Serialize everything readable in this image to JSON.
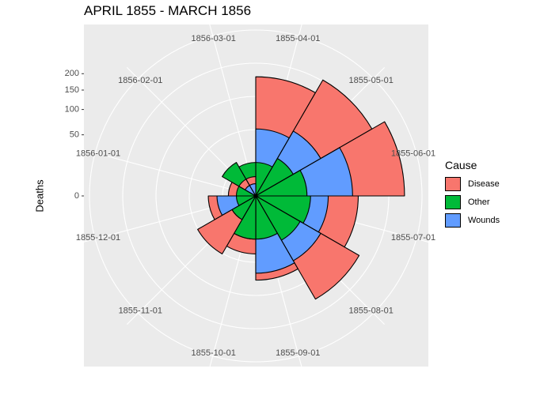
{
  "chart_data": {
    "type": "polar-area",
    "title": "APRIL 1855 - MARCH 1856",
    "xlabel": "",
    "ylabel": "Deaths",
    "y_scale": "sqrt",
    "y_ticks": [
      0,
      50,
      100,
      150,
      200
    ],
    "categories": [
      "1855-04-01",
      "1855-05-01",
      "1855-06-01",
      "1855-07-01",
      "1855-08-01",
      "1855-09-01",
      "1855-10-01",
      "1855-11-01",
      "1855-12-01",
      "1856-01-01",
      "1856-02-01",
      "1856-03-01"
    ],
    "legend_title": "Cause",
    "legend_position": "right",
    "series": [
      {
        "name": "Disease",
        "color": "#F8766D",
        "values": [
          190,
          240,
          295,
          140,
          190,
          95,
          45,
          60,
          30,
          10,
          5,
          5
        ]
      },
      {
        "name": "Wounds",
        "color": "#619CFF",
        "values": [
          60,
          75,
          125,
          70,
          75,
          80,
          25,
          10,
          20,
          0,
          2,
          2
        ]
      },
      {
        "name": "Other",
        "color": "#00BA38",
        "values": [
          15,
          25,
          35,
          40,
          35,
          25,
          25,
          10,
          5,
          5,
          20,
          15
        ]
      }
    ]
  }
}
